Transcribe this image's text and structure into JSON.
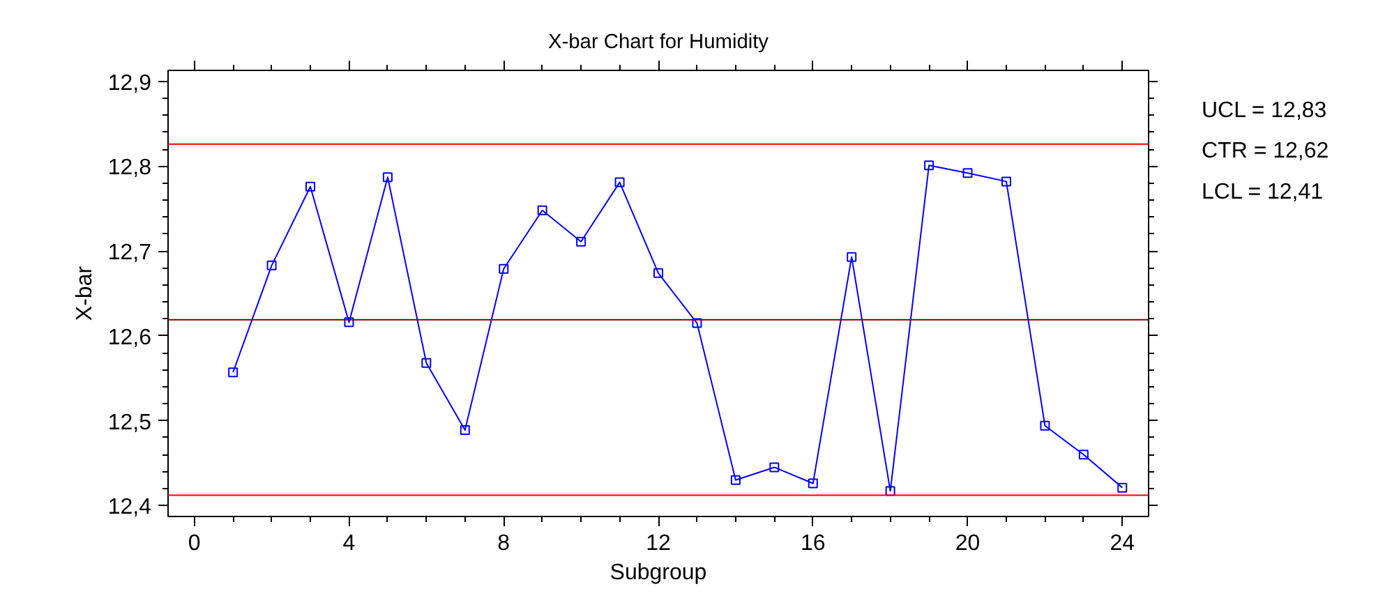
{
  "chart_data": {
    "type": "line",
    "title": "X-bar Chart for Humidity",
    "xlabel": "Subgroup",
    "ylabel": "X-bar",
    "x": [
      1,
      2,
      3,
      4,
      5,
      6,
      7,
      8,
      9,
      10,
      11,
      12,
      13,
      14,
      15,
      16,
      17,
      18,
      19,
      20,
      21,
      22,
      23,
      24
    ],
    "series": [
      {
        "color": "#0000ff",
        "values": [
          12.557,
          12.683,
          12.776,
          12.616,
          12.787,
          12.568,
          12.489,
          12.679,
          12.748,
          12.711,
          12.781,
          12.674,
          12.615,
          12.43,
          12.445,
          12.426,
          12.693,
          12.417,
          12.801,
          12.792,
          12.782,
          12.494,
          12.46,
          12.421
        ]
      }
    ],
    "xlim": [
      -0.68,
      24.68
    ],
    "xticks": [
      0,
      4,
      8,
      12,
      16,
      20,
      24
    ],
    "ylim": [
      12.387,
      12.913
    ],
    "yticks": [
      {
        "value": 12.4,
        "label": "12,4"
      },
      {
        "value": 12.5,
        "label": "12,5"
      },
      {
        "value": 12.6,
        "label": "12,6"
      },
      {
        "value": 12.7,
        "label": "12,7"
      },
      {
        "value": 12.8,
        "label": "12,8"
      },
      {
        "value": 12.9,
        "label": "12,9"
      }
    ],
    "ref_lines": [
      {
        "axis": "y",
        "value": 12.826,
        "color": "#ff0000"
      },
      {
        "axis": "y",
        "value": 12.619,
        "color": "#800000"
      },
      {
        "axis": "y",
        "value": 12.412,
        "color": "#ff0000"
      }
    ],
    "annotations": [
      "UCL = 12,83",
      "CTR = 12,62",
      "LCL = 12,41"
    ],
    "marker": "square",
    "line_style": "solid",
    "grid": false
  }
}
